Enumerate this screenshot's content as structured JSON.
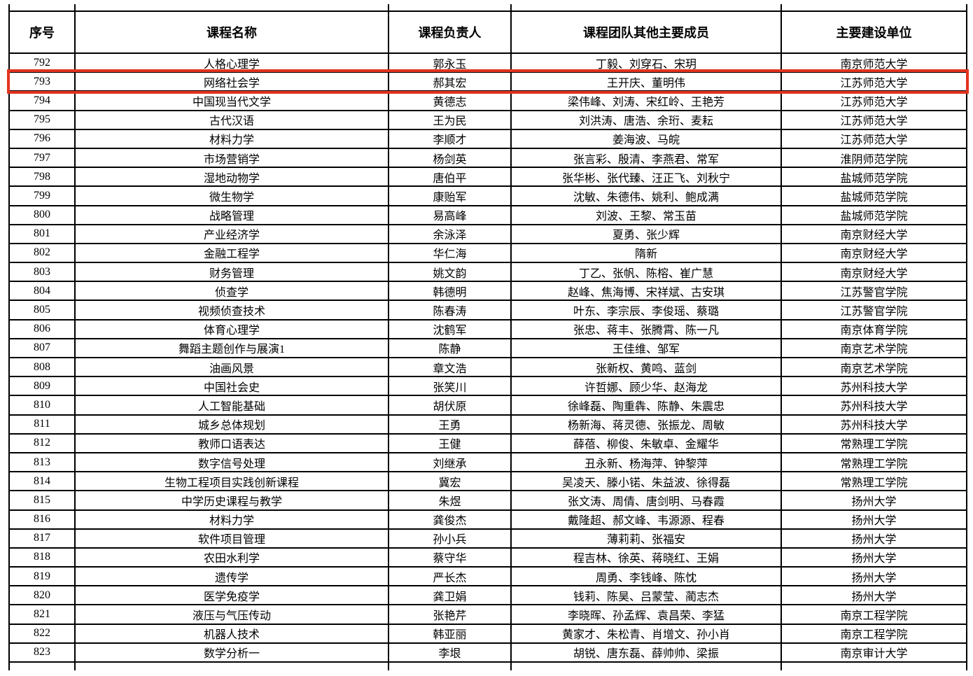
{
  "colors": {
    "page_background": "#ffffff",
    "grid_line": "#000000",
    "text": "#000000",
    "highlight_border": "#e2331f"
  },
  "table": {
    "headers": [
      "序号",
      "课程名称",
      "课程负责人",
      "课程团队其他主要成员",
      "主要建设单位"
    ],
    "highlighted_serial": "793",
    "rows": [
      [
        "792",
        "人格心理学",
        "郭永玉",
        "丁毅、刘穿石、宋玥",
        "南京师范大学"
      ],
      [
        "793",
        "网络社会学",
        "郝其宏",
        "王开庆、董明伟",
        "江苏师范大学"
      ],
      [
        "794",
        "中国现当代文学",
        "黄德志",
        "梁伟峰、刘涛、宋红岭、王艳芳",
        "江苏师范大学"
      ],
      [
        "795",
        "古代汉语",
        "王为民",
        "刘洪涛、唐浩、余珩、麦耘",
        "江苏师范大学"
      ],
      [
        "796",
        "材料力学",
        "李顺才",
        "姜海波、马皖",
        "江苏师范大学"
      ],
      [
        "797",
        "市场营销学",
        "杨剑英",
        "张言彩、殷清、李燕君、常军",
        "淮阴师范学院"
      ],
      [
        "798",
        "湿地动物学",
        "唐伯平",
        "张华彬、张代臻、汪正飞、刘秋宁",
        "盐城师范学院"
      ],
      [
        "799",
        "微生物学",
        "康贻军",
        "沈敏、朱德伟、姚利、鲍成满",
        "盐城师范学院"
      ],
      [
        "800",
        "战略管理",
        "易高峰",
        "刘波、王黎、常玉苗",
        "盐城师范学院"
      ],
      [
        "801",
        "产业经济学",
        "余泳泽",
        "夏勇、张少辉",
        "南京财经大学"
      ],
      [
        "802",
        "金融工程学",
        "华仁海",
        "隋新",
        "南京财经大学"
      ],
      [
        "803",
        "财务管理",
        "姚文韵",
        "丁乙、张帆、陈榕、崔广慧",
        "南京财经大学"
      ],
      [
        "804",
        "侦查学",
        "韩德明",
        "赵峰、焦海博、宋祥斌、古安琪",
        "江苏警官学院"
      ],
      [
        "805",
        "视频侦查技术",
        "陈春涛",
        "叶东、李宗辰、李俊瑶、蔡璐",
        "江苏警官学院"
      ],
      [
        "806",
        "体育心理学",
        "沈鹤军",
        "张忠、蒋丰、张腾霄、陈一凡",
        "南京体育学院"
      ],
      [
        "807",
        "舞蹈主题创作与展演1",
        "陈静",
        "王佳维、邹军",
        "南京艺术学院"
      ],
      [
        "808",
        "油画风景",
        "章文浩",
        "张新权、黄鸣、蓝剑",
        "南京艺术学院"
      ],
      [
        "809",
        "中国社会史",
        "张笑川",
        "许哲娜、顾少华、赵海龙",
        "苏州科技大学"
      ],
      [
        "810",
        "人工智能基础",
        "胡伏原",
        "徐峰磊、陶重犇、陈静、朱震忠",
        "苏州科技大学"
      ],
      [
        "811",
        "城乡总体规划",
        "王勇",
        "杨新海、蒋灵德、张振龙、周敏",
        "苏州科技大学"
      ],
      [
        "812",
        "教师口语表达",
        "王健",
        "薛蓓、柳俊、朱敏卓、金耀华",
        "常熟理工学院"
      ],
      [
        "813",
        "数字信号处理",
        "刘继承",
        "丑永新、杨海萍、钟黎萍",
        "常熟理工学院"
      ],
      [
        "814",
        "生物工程项目实践创新课程",
        "冀宏",
        "吴凌天、滕小锘、朱益波、徐得磊",
        "常熟理工学院"
      ],
      [
        "815",
        "中学历史课程与教学",
        "朱煜",
        "张文涛、周倩、唐剑明、马春霞",
        "扬州大学"
      ],
      [
        "816",
        "材料力学",
        "龚俊杰",
        "戴隆超、郝文峰、韦源源、程春",
        "扬州大学"
      ],
      [
        "817",
        "软件项目管理",
        "孙小兵",
        "薄莉莉、张福安",
        "扬州大学"
      ],
      [
        "818",
        "农田水利学",
        "蔡守华",
        "程吉林、徐英、蒋晓红、王娟",
        "扬州大学"
      ],
      [
        "819",
        "遗传学",
        "严长杰",
        "周勇、李钱峰、陈忱",
        "扬州大学"
      ],
      [
        "820",
        "医学免疫学",
        "龚卫娟",
        "钱莉、陈昊、吕蒙莹、蔺志杰",
        "扬州大学"
      ],
      [
        "821",
        "液压与气压传动",
        "张艳芹",
        "李晓晖、孙孟辉、袁昌荣、李猛",
        "南京工程学院"
      ],
      [
        "822",
        "机器人技术",
        "韩亚丽",
        "黄家才、朱松青、肖增文、孙小肖",
        "南京工程学院"
      ],
      [
        "823",
        "数学分析一",
        "李垠",
        "胡锐、唐东磊、薛帅帅、梁振",
        "南京审计大学"
      ]
    ]
  }
}
